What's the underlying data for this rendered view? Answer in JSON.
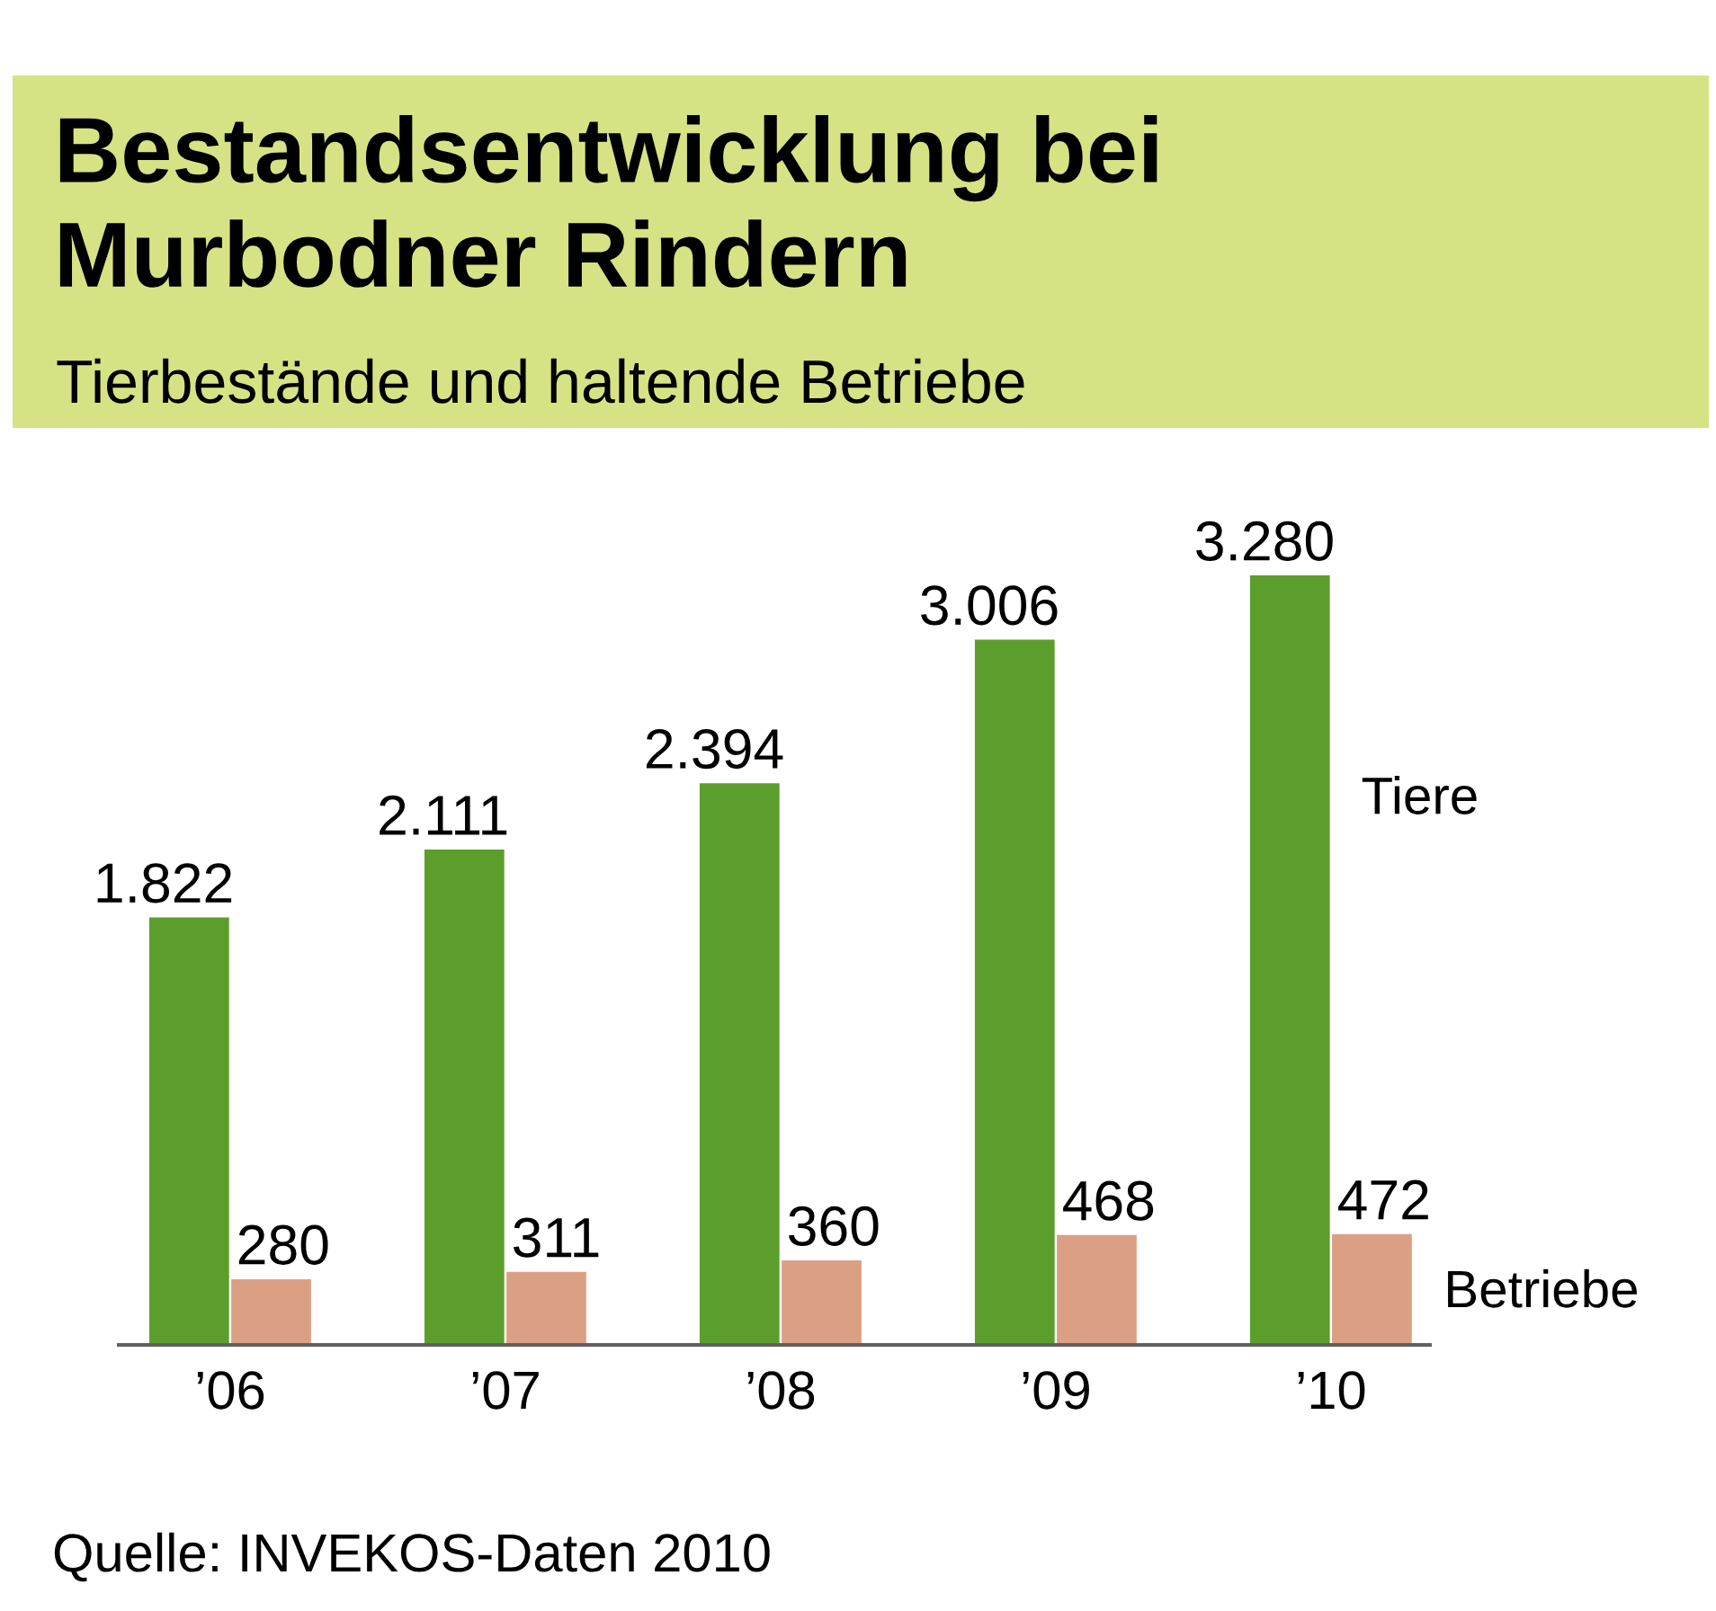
{
  "chart_data": {
    "type": "bar",
    "title": "Bestandsentwicklung bei\nMurbodner Rindern",
    "subtitle": "Tierbestände und haltende Betriebe",
    "categories": [
      "’06",
      "’07",
      "’08",
      "’09",
      "’10"
    ],
    "series": [
      {
        "name": "Tiere",
        "color": "#5c9e2c",
        "values": [
          1822,
          2111,
          2394,
          3006,
          3280
        ],
        "value_labels": [
          "1.822",
          "2.111",
          "2.394",
          "3.006",
          "3.280"
        ]
      },
      {
        "name": "Betriebe",
        "color": "#dba084",
        "values": [
          280,
          311,
          360,
          468,
          472
        ],
        "value_labels": [
          "280",
          "311",
          "360",
          "468",
          "472"
        ]
      }
    ],
    "annotations": [
      "Quelle: INVEKOS-Daten 2010"
    ]
  }
}
